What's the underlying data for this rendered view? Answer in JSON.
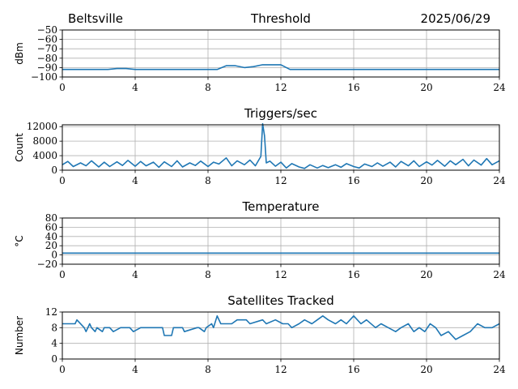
{
  "header": {
    "station": "Beltsville",
    "date": "2025/06/29"
  },
  "line_color": "#1f77b4",
  "chart_data": [
    {
      "type": "line",
      "title": "Threshold",
      "xlabel": "",
      "ylabel": "dBm",
      "xlim": [
        0,
        24
      ],
      "ylim": [
        -100,
        -50
      ],
      "xticks": [
        0,
        4,
        8,
        12,
        16,
        20,
        24
      ],
      "yticks": [
        -100,
        -90,
        -80,
        -70,
        -60,
        -50
      ],
      "ytick_labels": [
        "−100",
        "−90",
        "−80",
        "−70",
        "−60",
        "−50"
      ],
      "grid": true,
      "series": [
        {
          "x": [
            0,
            0.5,
            1,
            1.5,
            2,
            2.5,
            3,
            3.5,
            4,
            4.5,
            5,
            5.5,
            6,
            6.5,
            7,
            7.5,
            8,
            8.5,
            9,
            9.5,
            10,
            10.5,
            11,
            11.5,
            12,
            12.5,
            13,
            13.5,
            14,
            14.5,
            15,
            15.5,
            16,
            16.5,
            17,
            17.5,
            18,
            18.5,
            19,
            19.5,
            20,
            20.5,
            21,
            21.5,
            22,
            22.5,
            23,
            23.5,
            24
          ],
          "y": [
            -92,
            -92,
            -92,
            -92,
            -92,
            -92,
            -91,
            -91,
            -92,
            -92,
            -92,
            -92,
            -92,
            -92,
            -92,
            -92,
            -92,
            -92,
            -88,
            -88,
            -90,
            -89,
            -87,
            -87,
            -87,
            -92,
            -92,
            -92,
            -92,
            -92,
            -92,
            -92,
            -92,
            -92,
            -92,
            -92,
            -92,
            -92,
            -92,
            -92,
            -92,
            -92,
            -92,
            -92,
            -92,
            -92,
            -92,
            -92,
            -92
          ]
        }
      ]
    },
    {
      "type": "line",
      "title": "Triggers/sec",
      "xlabel": "",
      "ylabel": "Count",
      "xlim": [
        0,
        24
      ],
      "ylim": [
        0,
        12500
      ],
      "xticks": [
        0,
        4,
        8,
        12,
        16,
        20,
        24
      ],
      "yticks": [
        0,
        4000,
        8000,
        12000
      ],
      "ytick_labels": [
        "0",
        "4000",
        "8000",
        "12000"
      ],
      "grid": true,
      "series": [
        {
          "x": [
            0,
            0.3,
            0.6,
            1,
            1.3,
            1.6,
            2,
            2.3,
            2.6,
            3,
            3.3,
            3.6,
            4,
            4.3,
            4.6,
            5,
            5.3,
            5.6,
            6,
            6.3,
            6.6,
            7,
            7.3,
            7.6,
            8,
            8.3,
            8.6,
            9,
            9.3,
            9.6,
            10,
            10.3,
            10.6,
            10.9,
            11.0,
            11.1,
            11.2,
            11.4,
            11.7,
            12,
            12.3,
            12.6,
            13,
            13.3,
            13.6,
            14,
            14.3,
            14.6,
            15,
            15.3,
            15.6,
            16,
            16.3,
            16.6,
            17,
            17.3,
            17.6,
            18,
            18.3,
            18.6,
            19,
            19.3,
            19.6,
            20,
            20.3,
            20.6,
            21,
            21.3,
            21.6,
            22,
            22.3,
            22.6,
            23,
            23.3,
            23.6,
            24
          ],
          "y": [
            1500,
            2400,
            1000,
            2000,
            1200,
            2600,
            900,
            2200,
            1000,
            2300,
            1300,
            2700,
            1100,
            2400,
            1200,
            2200,
            800,
            2300,
            1000,
            2600,
            900,
            2000,
            1300,
            2500,
            1000,
            2200,
            1700,
            3400,
            1200,
            2600,
            1500,
            2800,
            1200,
            3800,
            12800,
            9500,
            2000,
            2500,
            1100,
            2200,
            600,
            1800,
            900,
            500,
            1500,
            600,
            1300,
            700,
            1500,
            800,
            1800,
            1000,
            600,
            1700,
            1000,
            2000,
            1100,
            2200,
            900,
            2400,
            1200,
            2600,
            1000,
            2300,
            1400,
            2700,
            1100,
            2600,
            1500,
            3000,
            1200,
            2800,
            1400,
            3200,
            1500,
            2600
          ]
        }
      ]
    },
    {
      "type": "line",
      "title": "Temperature",
      "xlabel": "",
      "ylabel": "°C",
      "xlim": [
        0,
        24
      ],
      "ylim": [
        -20,
        80
      ],
      "xticks": [
        0,
        4,
        8,
        12,
        16,
        20,
        24
      ],
      "yticks": [
        -20,
        0,
        20,
        40,
        60,
        80
      ],
      "ytick_labels": [
        "−20",
        "0",
        "20",
        "40",
        "60",
        "80"
      ],
      "grid": true,
      "series": [
        {
          "x": [
            0,
            24
          ],
          "y": [
            4,
            4
          ]
        }
      ]
    },
    {
      "type": "line",
      "title": "Satellites Tracked",
      "xlabel": "",
      "ylabel": "Number",
      "xlim": [
        0,
        24
      ],
      "ylim": [
        0,
        12
      ],
      "xticks": [
        0,
        4,
        8,
        12,
        16,
        20,
        24
      ],
      "yticks": [
        0,
        4,
        8,
        12
      ],
      "ytick_labels": [
        "0",
        "4",
        "8",
        "12"
      ],
      "grid": true,
      "series": [
        {
          "x": [
            0,
            0.7,
            0.8,
            1.2,
            1.3,
            1.5,
            1.6,
            1.8,
            1.9,
            2.2,
            2.3,
            2.6,
            2.8,
            3.2,
            3.3,
            3.7,
            3.9,
            4.3,
            4.5,
            5.5,
            5.6,
            6,
            6.1,
            6.6,
            6.7,
            7.4,
            7.5,
            7.8,
            7.9,
            8.2,
            8.3,
            8.5,
            8.7,
            9.3,
            9.6,
            10.1,
            10.3,
            11,
            11.2,
            11.7,
            12.1,
            12.4,
            12.6,
            13,
            13.3,
            13.7,
            14,
            14.3,
            14.6,
            15,
            15.3,
            15.6,
            16,
            16.4,
            16.7,
            17.2,
            17.5,
            17.9,
            18.3,
            18.6,
            19,
            19.3,
            19.6,
            19.9,
            20.2,
            20.5,
            20.8,
            21.2,
            21.6,
            22,
            22.4,
            22.8,
            23.2,
            23.6,
            24
          ],
          "y": [
            9,
            9,
            10,
            8,
            7,
            9,
            8,
            7,
            8,
            7,
            8,
            8,
            7,
            8,
            8,
            8,
            7,
            8,
            8,
            8,
            6,
            6,
            8,
            8,
            7,
            8,
            8,
            7,
            8,
            9,
            8,
            11,
            9,
            9,
            10,
            10,
            9,
            10,
            9,
            10,
            9,
            9,
            8,
            9,
            10,
            9,
            10,
            11,
            10,
            9,
            10,
            9,
            11,
            9,
            10,
            8,
            9,
            8,
            7,
            8,
            9,
            7,
            8,
            7,
            9,
            8,
            6,
            7,
            5,
            6,
            7,
            9,
            8,
            8,
            9
          ]
        }
      ]
    }
  ]
}
